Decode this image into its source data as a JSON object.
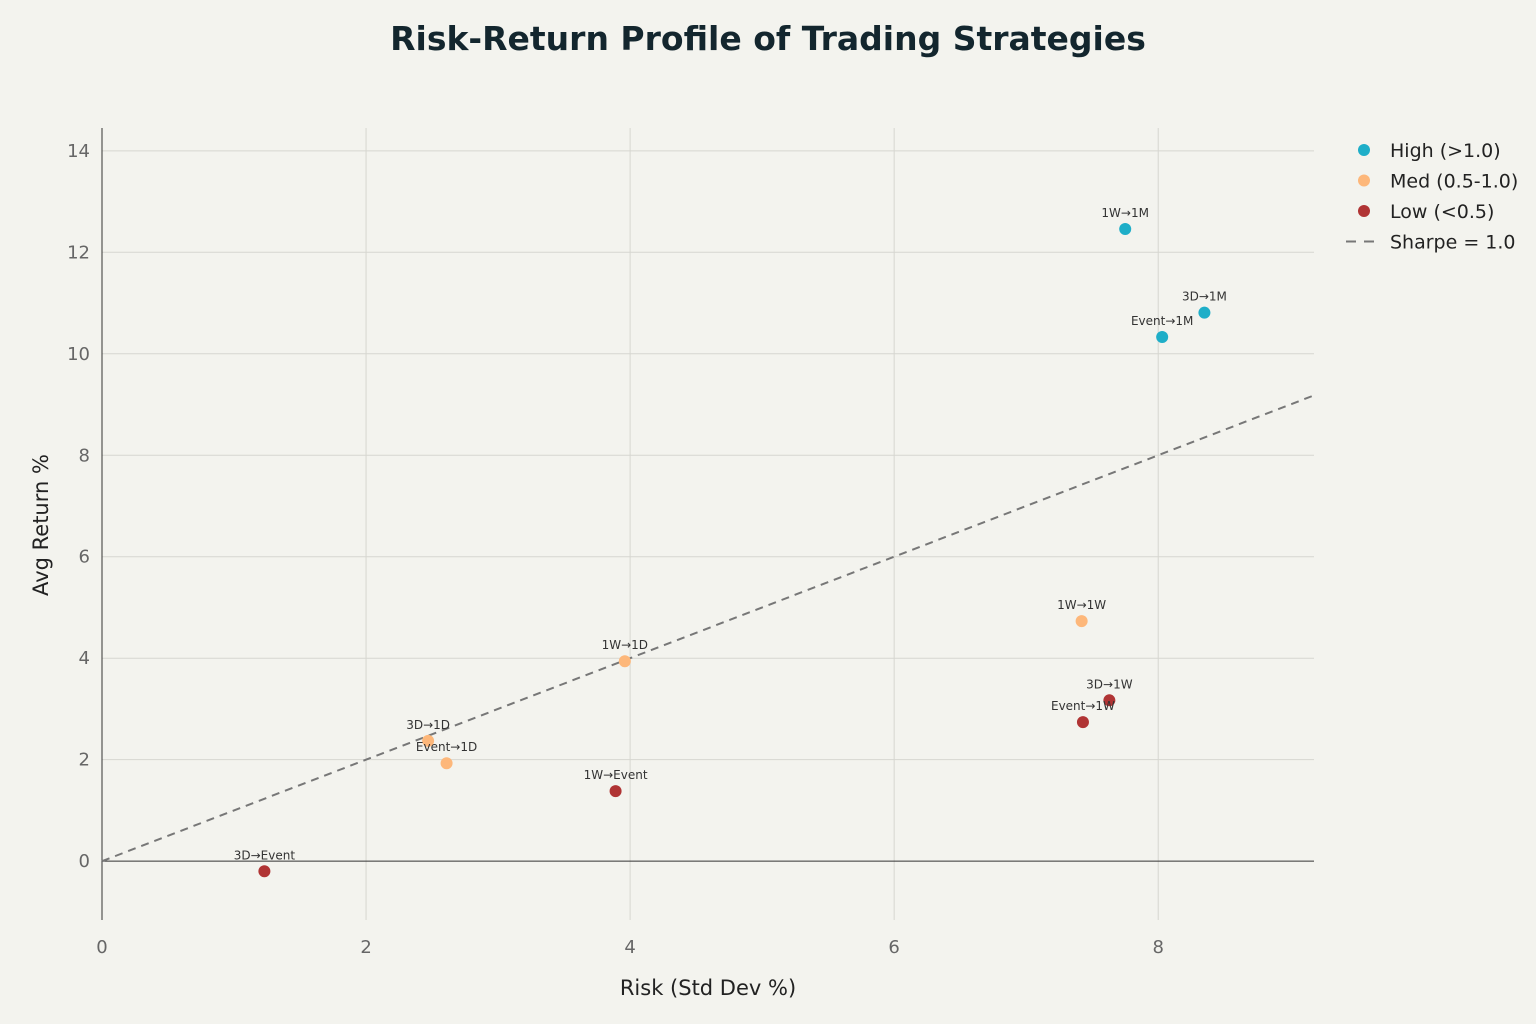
{
  "chart_data": {
    "type": "scatter",
    "title": "Risk-Return Profile of Trading Strategies",
    "xlabel": "Risk (Std Dev %)",
    "ylabel": "Avg Return %",
    "xlim": [
      0,
      9.18
    ],
    "ylim": [
      -1.16,
      14.45
    ],
    "xticks": [
      0,
      2,
      4,
      6,
      8
    ],
    "yticks": [
      0,
      2,
      4,
      6,
      8,
      10,
      12,
      14
    ],
    "grid": true,
    "legend_position": "top-right",
    "series": [
      {
        "name": "High (>1.0)",
        "color": "#1eaec8",
        "points": [
          {
            "label": "1W→1M",
            "x": 7.75,
            "y": 12.46
          },
          {
            "label": "3D→1M",
            "x": 8.35,
            "y": 10.81
          },
          {
            "label": "Event→1M",
            "x": 8.03,
            "y": 10.33
          }
        ]
      },
      {
        "name": "Med (0.5-1.0)",
        "color": "#fdb77a",
        "points": [
          {
            "label": "1W→1W",
            "x": 7.42,
            "y": 4.73
          },
          {
            "label": "1W→1D",
            "x": 3.96,
            "y": 3.94
          },
          {
            "label": "3D→1D",
            "x": 2.47,
            "y": 2.37
          },
          {
            "label": "Event→1D",
            "x": 2.61,
            "y": 1.93
          }
        ]
      },
      {
        "name": "Low (<0.5)",
        "color": "#b03434",
        "points": [
          {
            "label": "3D→1W",
            "x": 7.63,
            "y": 3.17
          },
          {
            "label": "Event→1W",
            "x": 7.43,
            "y": 2.74
          },
          {
            "label": "1W→Event",
            "x": 3.89,
            "y": 1.38
          },
          {
            "label": "3D→Event",
            "x": 1.23,
            "y": -0.2
          }
        ]
      }
    ],
    "reference_line": {
      "name": "Sharpe = 1.0",
      "slope": 1,
      "color": "#777777",
      "style": "dashed"
    }
  }
}
